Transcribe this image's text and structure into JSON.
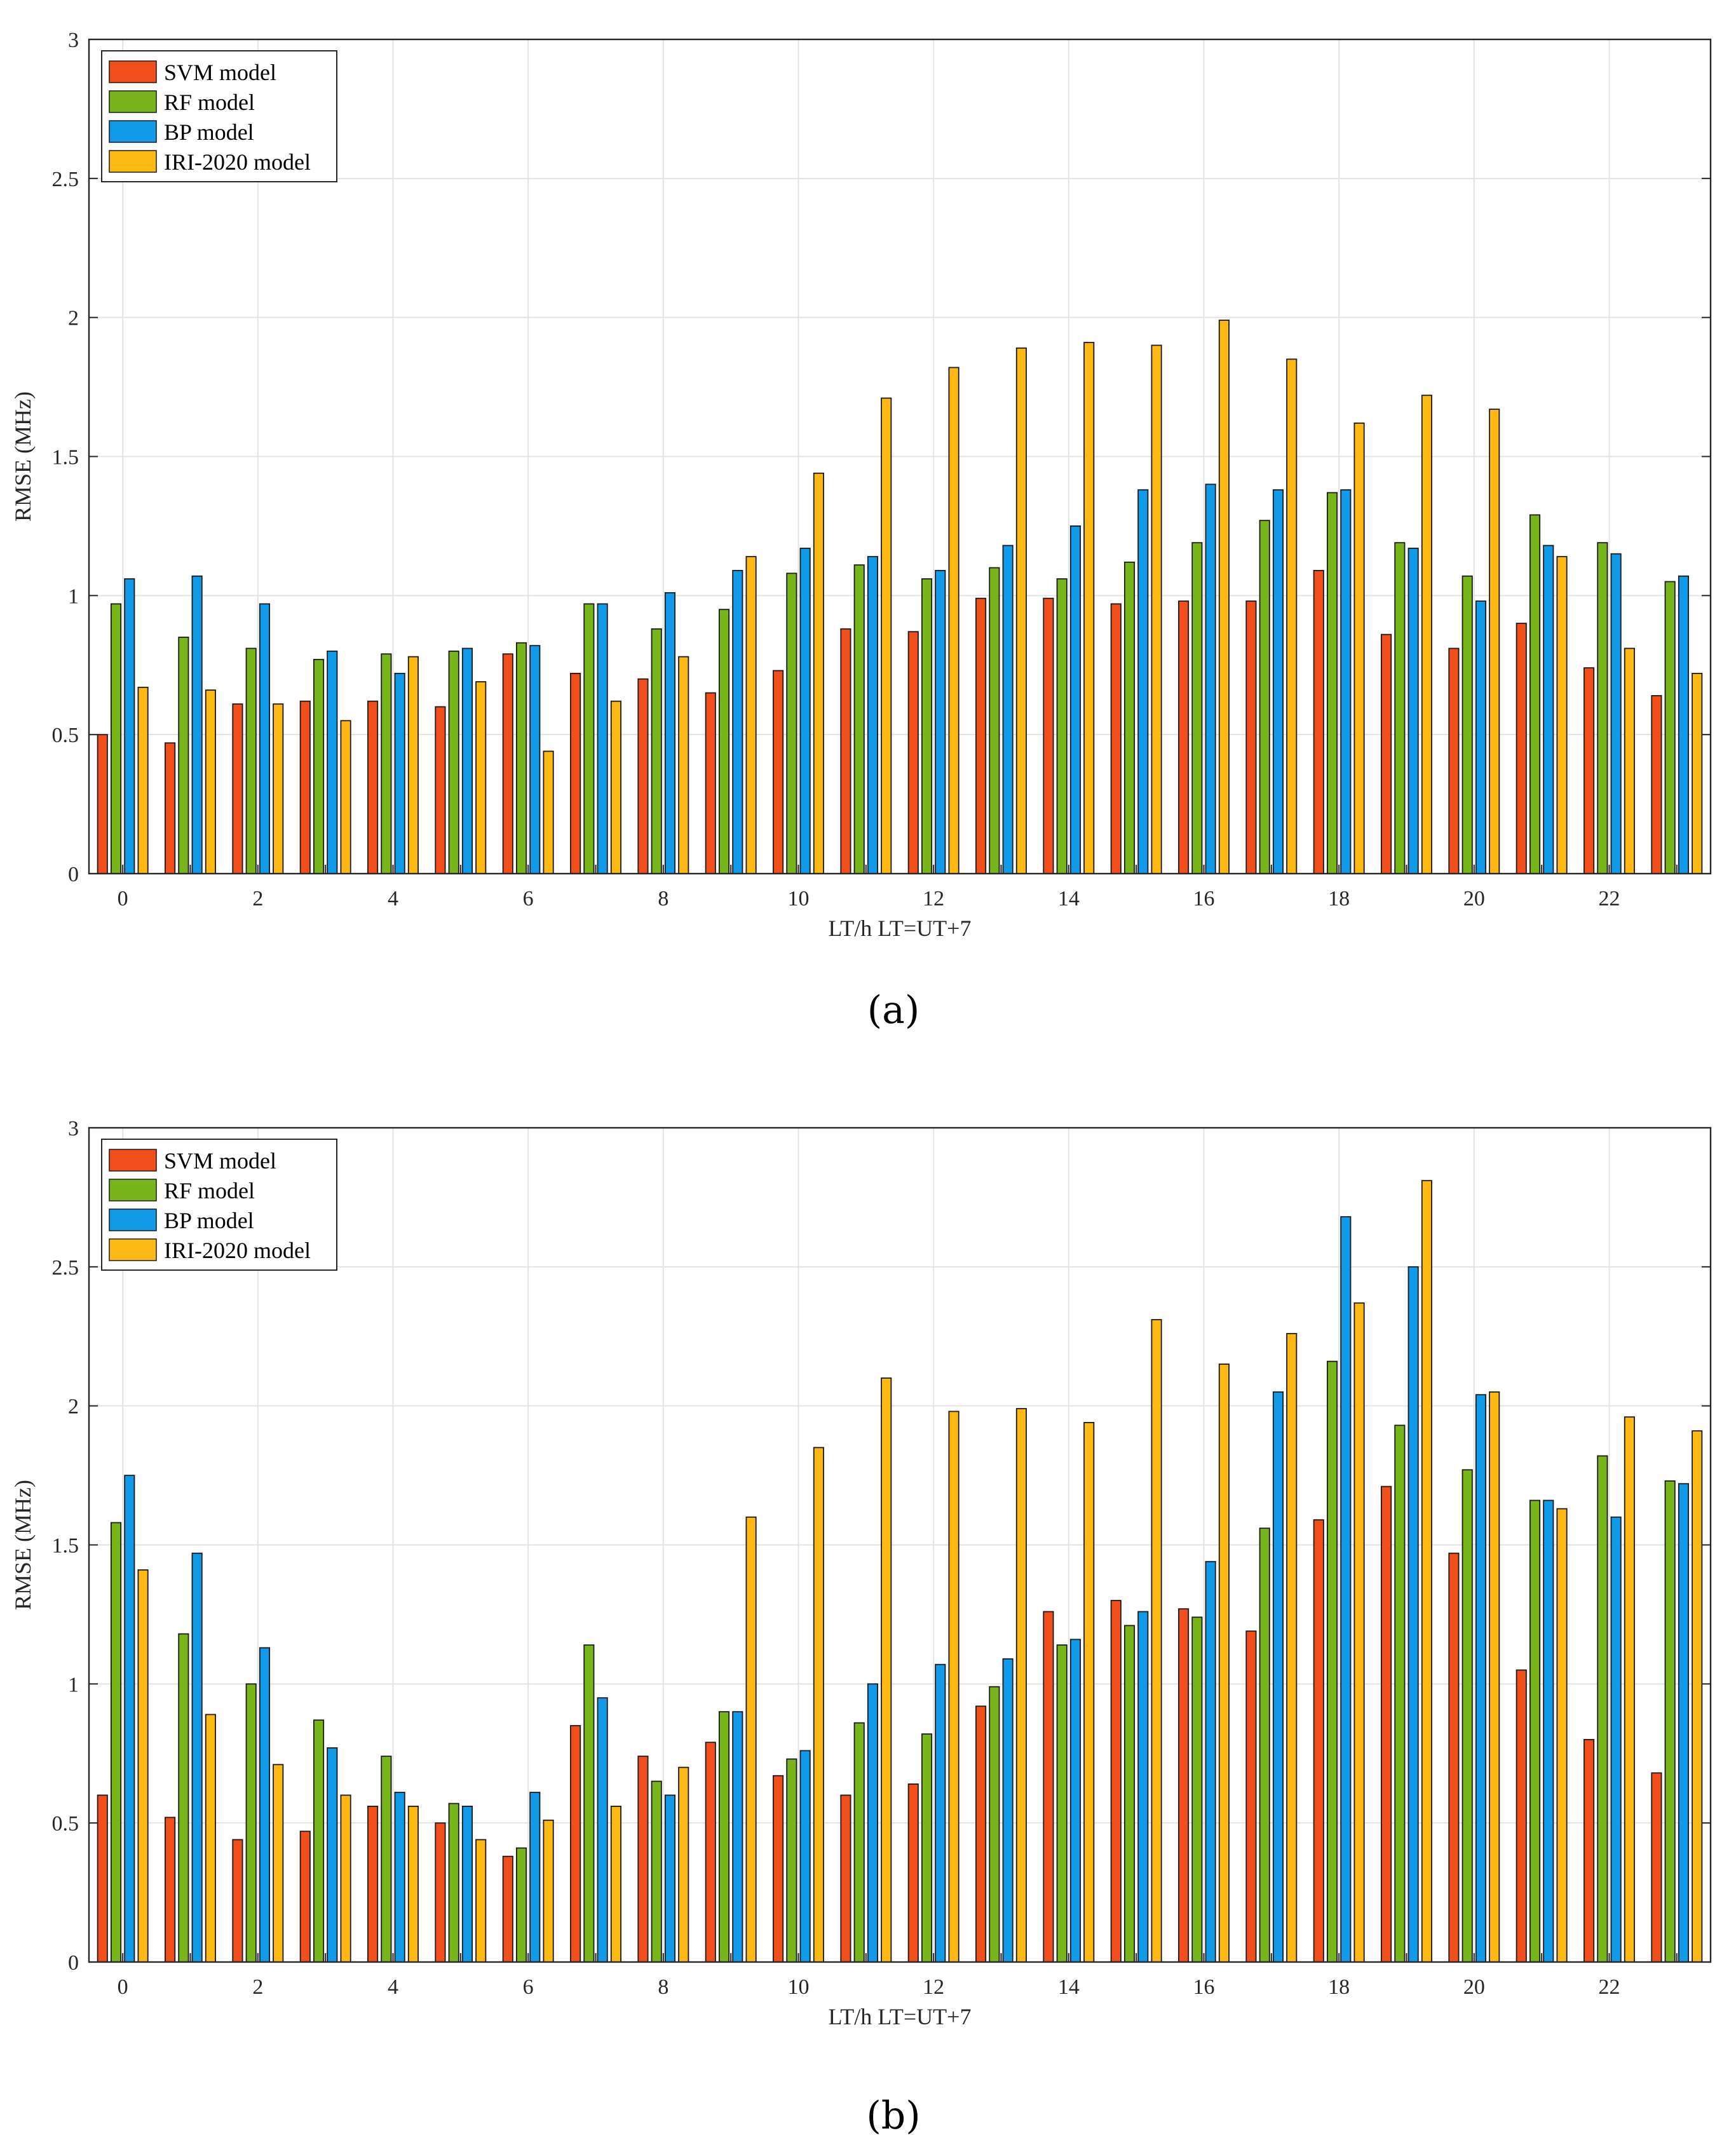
{
  "chart_data": [
    {
      "type": "bar",
      "panel": "(a)",
      "caption": "(a)",
      "xlabel": "LT/h  LT=UT+7",
      "ylabel": "RMSE (MHz)",
      "ylim": [
        0,
        3
      ],
      "yticks": [
        "0",
        "0.5",
        "1",
        "1.5",
        "2",
        "2.5",
        "3"
      ],
      "xticks": [
        "0",
        "2",
        "4",
        "6",
        "8",
        "10",
        "12",
        "14",
        "16",
        "18",
        "20",
        "22"
      ],
      "grid": true,
      "legend_position": "top-left",
      "categories": [
        "0",
        "1",
        "2",
        "3",
        "4",
        "5",
        "6",
        "7",
        "8",
        "9",
        "10",
        "11",
        "12",
        "13",
        "14",
        "15",
        "16",
        "17",
        "18",
        "19",
        "20",
        "21",
        "22",
        "23"
      ],
      "series": [
        {
          "name": "SVM model",
          "color": "#f04e1a",
          "values": [
            0.5,
            0.47,
            0.61,
            0.62,
            0.62,
            0.6,
            0.79,
            0.72,
            0.7,
            0.65,
            0.73,
            0.88,
            0.87,
            0.99,
            0.99,
            0.97,
            0.98,
            0.98,
            1.09,
            0.86,
            0.81,
            0.9,
            0.74,
            0.64
          ]
        },
        {
          "name": "RF model",
          "color": "#77b51b",
          "values": [
            0.97,
            0.85,
            0.81,
            0.77,
            0.79,
            0.8,
            0.83,
            0.97,
            0.88,
            0.95,
            1.08,
            1.11,
            1.06,
            1.1,
            1.06,
            1.12,
            1.19,
            1.27,
            1.37,
            1.19,
            1.07,
            1.29,
            1.19,
            1.05
          ]
        },
        {
          "name": "BP model",
          "color": "#119ae8",
          "values": [
            1.06,
            1.07,
            0.97,
            0.8,
            0.72,
            0.81,
            0.82,
            0.97,
            1.01,
            1.09,
            1.17,
            1.14,
            1.09,
            1.18,
            1.25,
            1.38,
            1.4,
            1.38,
            1.38,
            1.17,
            0.98,
            1.18,
            1.15,
            1.07
          ]
        },
        {
          "name": "IRI-2020 model",
          "color": "#fdb813",
          "values": [
            0.67,
            0.66,
            0.61,
            0.55,
            0.78,
            0.69,
            0.44,
            0.62,
            0.78,
            1.14,
            1.44,
            1.71,
            1.82,
            1.89,
            1.91,
            1.9,
            1.99,
            1.85,
            1.62,
            1.72,
            1.67,
            1.14,
            0.81,
            0.72
          ]
        }
      ]
    },
    {
      "type": "bar",
      "panel": "(b)",
      "caption": "(b)",
      "xlabel": "LT/h  LT=UT+7",
      "ylabel": "RMSE (MHz)",
      "ylim": [
        0,
        3
      ],
      "yticks": [
        "0",
        "0.5",
        "1",
        "1.5",
        "2",
        "2.5",
        "3"
      ],
      "xticks": [
        "0",
        "2",
        "4",
        "6",
        "8",
        "10",
        "12",
        "14",
        "16",
        "18",
        "20",
        "22"
      ],
      "grid": true,
      "legend_position": "top-left",
      "categories": [
        "0",
        "1",
        "2",
        "3",
        "4",
        "5",
        "6",
        "7",
        "8",
        "9",
        "10",
        "11",
        "12",
        "13",
        "14",
        "15",
        "16",
        "17",
        "18",
        "19",
        "20",
        "21",
        "22",
        "23"
      ],
      "series": [
        {
          "name": "SVM model",
          "color": "#f04e1a",
          "values": [
            0.6,
            0.52,
            0.44,
            0.47,
            0.56,
            0.5,
            0.38,
            0.85,
            0.74,
            0.79,
            0.67,
            0.6,
            0.64,
            0.92,
            1.26,
            1.3,
            1.27,
            1.19,
            1.59,
            1.71,
            1.47,
            1.05,
            0.8,
            0.68
          ]
        },
        {
          "name": "RF model",
          "color": "#77b51b",
          "values": [
            1.58,
            1.18,
            1.0,
            0.87,
            0.74,
            0.57,
            0.41,
            1.14,
            0.65,
            0.9,
            0.73,
            0.86,
            0.82,
            0.99,
            1.14,
            1.21,
            1.24,
            1.56,
            2.16,
            1.93,
            1.77,
            1.66,
            1.82,
            1.73
          ]
        },
        {
          "name": "BP model",
          "color": "#119ae8",
          "values": [
            1.75,
            1.47,
            1.13,
            0.77,
            0.61,
            0.56,
            0.61,
            0.95,
            0.6,
            0.9,
            0.76,
            1.0,
            1.07,
            1.09,
            1.16,
            1.26,
            1.44,
            2.05,
            2.68,
            2.5,
            2.04,
            1.66,
            1.6,
            1.72
          ]
        },
        {
          "name": "IRI-2020 model",
          "color": "#fdb813",
          "values": [
            1.41,
            0.89,
            0.71,
            0.6,
            0.56,
            0.44,
            0.51,
            0.56,
            0.7,
            1.6,
            1.85,
            2.1,
            1.98,
            1.99,
            1.94,
            2.31,
            2.15,
            2.26,
            2.37,
            2.81,
            2.05,
            1.63,
            1.96,
            1.91
          ]
        }
      ]
    }
  ]
}
